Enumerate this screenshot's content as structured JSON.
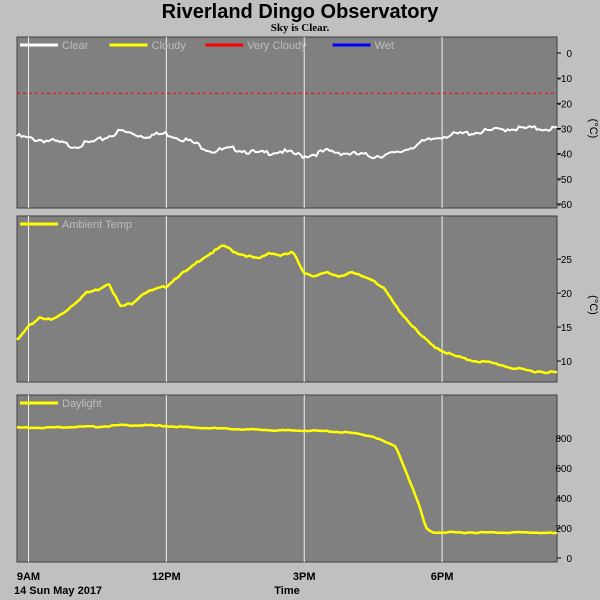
{
  "title": "Riverland Dingo Observatory",
  "subtitle": "Sky is Clear.",
  "footer": {
    "date": "14 Sun May 2017",
    "xlabel": "Time"
  },
  "colors": {
    "background": "#c0c0c0",
    "panel": "#808080",
    "grid": "#ffffff",
    "clear": "#ffffff",
    "cloudy": "#ffff00",
    "very_cloudy": "#ff0000",
    "wet": "#0000ff"
  },
  "chart_data": [
    {
      "type": "line",
      "series": [
        {
          "name": "Clear",
          "color": "#ffffff",
          "x": [
            8.75,
            9.0,
            9.5,
            10.0,
            10.5,
            11.0,
            11.5,
            12.0,
            12.5,
            13.0,
            13.5,
            14.0,
            14.5,
            15.0,
            15.5,
            16.0,
            16.5,
            17.0,
            17.5,
            18.0,
            18.5,
            19.0,
            19.5,
            20.5
          ],
          "values": [
            -33,
            -34,
            -35,
            -37,
            -35,
            -31,
            -33,
            -32,
            -35,
            -39,
            -38,
            -40,
            -39,
            -41,
            -39,
            -40,
            -41,
            -40,
            -36,
            -33,
            -32,
            -31,
            -30,
            -30
          ]
        },
        {
          "name": "Cloudy",
          "color": "#ffff00",
          "x": [],
          "values": []
        },
        {
          "name": "Very Cloudy",
          "color": "#ff0000",
          "x": [
            8.75,
            20.5
          ],
          "values": [
            -16,
            -16
          ]
        },
        {
          "name": "Wet",
          "color": "#0000ff",
          "x": [],
          "values": []
        }
      ],
      "xlim": [
        8.75,
        20.5
      ],
      "ylim": [
        -60,
        0
      ],
      "yticks": [
        0,
        -10,
        -20,
        -30,
        -40,
        -50,
        -60
      ],
      "ylabel_unit": "(°C)",
      "grid": true,
      "legend_position": "top-left"
    },
    {
      "type": "line",
      "series": [
        {
          "name": "Ambient Temp",
          "color": "#ffff00",
          "x": [
            8.75,
            9.0,
            9.25,
            9.5,
            9.75,
            10.0,
            10.25,
            10.5,
            10.75,
            11.0,
            11.25,
            11.5,
            11.75,
            12.0,
            12.25,
            12.5,
            12.75,
            13.0,
            13.25,
            13.5,
            13.75,
            14.0,
            14.25,
            14.5,
            14.75,
            15.0,
            15.25,
            15.5,
            15.75,
            16.0,
            16.25,
            16.5,
            16.75,
            17.0,
            17.25,
            17.5,
            17.75,
            18.0,
            18.25,
            18.5,
            18.75,
            19.0,
            19.25,
            19.5,
            19.75,
            20.0,
            20.5
          ],
          "values": [
            13,
            15,
            16.5,
            16,
            17,
            18.5,
            20,
            20.5,
            21.5,
            18,
            18.5,
            20,
            20.5,
            21,
            22.5,
            23.5,
            25,
            26,
            27,
            26,
            25.5,
            25,
            26,
            25.5,
            26,
            23,
            22.5,
            23,
            22.5,
            23,
            22.5,
            22,
            20.5,
            18,
            16,
            14,
            12.5,
            11.5,
            10.8,
            10.3,
            10,
            9.8,
            9.5,
            9,
            8.7,
            8.5,
            8.3
          ]
        }
      ],
      "xlim": [
        8.75,
        20.5
      ],
      "ylim": [
        7.5,
        29
      ],
      "yticks": [
        25,
        20,
        15,
        10
      ],
      "ylabel_unit": "(°C)",
      "grid": true,
      "legend_position": "top-left"
    },
    {
      "type": "line",
      "series": [
        {
          "name": "Daylight",
          "color": "#ffff00",
          "x": [
            8.75,
            9.5,
            10.0,
            10.5,
            11.0,
            11.5,
            12.0,
            12.5,
            13.0,
            13.5,
            14.0,
            14.5,
            15.0,
            15.5,
            16.0,
            16.5,
            17.0,
            17.25,
            17.5,
            17.65,
            17.8,
            18.0,
            18.5,
            19.0,
            19.5,
            20.0,
            20.5
          ],
          "values": [
            870,
            870,
            875,
            875,
            885,
            885,
            880,
            870,
            865,
            860,
            855,
            850,
            850,
            845,
            835,
            810,
            740,
            550,
            350,
            200,
            170,
            170,
            170,
            170,
            170,
            170,
            165
          ]
        }
      ],
      "xlim": [
        8.75,
        20.5
      ],
      "ylim": [
        0,
        980
      ],
      "yticks": [
        800,
        600,
        400,
        200,
        0
      ],
      "grid": true,
      "legend_position": "top-left"
    }
  ],
  "x_ticks": [
    {
      "x": 9,
      "label": "9AM"
    },
    {
      "x": 12,
      "label": "12PM"
    },
    {
      "x": 15,
      "label": "3PM"
    },
    {
      "x": 18,
      "label": "6PM"
    }
  ]
}
